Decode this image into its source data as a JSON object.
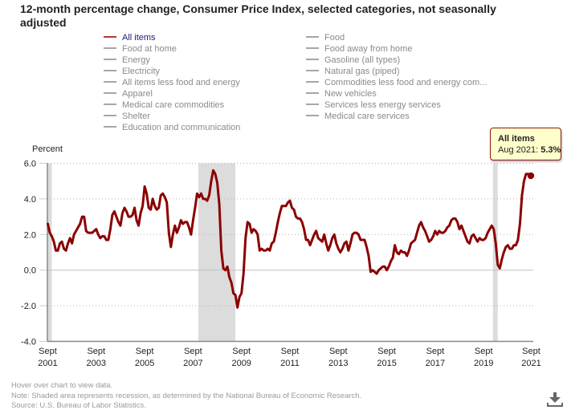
{
  "title": "12-month percentage change, Consumer Price Index, selected categories, not seasonally adjusted",
  "legend": {
    "left": [
      "All items",
      "Food at home",
      "Energy",
      "Electricity",
      "All items less food and energy",
      "Apparel",
      "Medical care commodities",
      "Shelter",
      "Education and communication"
    ],
    "right": [
      "Food",
      "Food away from home",
      "Gasoline (all types)",
      "Natural gas (piped)",
      "Commodities less food and energy com...",
      "New vehicles",
      "Services less energy services",
      "Medical care services"
    ],
    "active": "All items"
  },
  "tooltip": {
    "series": "All items",
    "label": "Aug 2021: ",
    "value": "5.3%"
  },
  "footer": {
    "hover": "Hover over chart to view data.",
    "note": "Note: Shaded area represents recession, as determined by the National Bureau of Economic Research.",
    "source": "Source: U.S. Bureau of Labor Statistics."
  },
  "colors": {
    "series": "#8b0000",
    "recession": "#dcdcdc",
    "grid": "#b0b0b0",
    "axis": "#888888"
  },
  "chart_data": {
    "type": "line",
    "title": "12-month percentage change, Consumer Price Index, selected categories, not seasonally adjusted",
    "xlabel": "",
    "ylabel": "Percent",
    "ylim": [
      -4.0,
      6.0
    ],
    "yticks": [
      "-4.0",
      "-2.0",
      "0.0",
      "2.0",
      "4.0",
      "6.0"
    ],
    "ytick_values": [
      -4,
      -2,
      0,
      2,
      4,
      6
    ],
    "x_start": "Sept 2001",
    "x_end": "Aug 2021",
    "xticks": [
      {
        "month_index": 0,
        "line1": "Sept",
        "line2": "2001"
      },
      {
        "month_index": 24,
        "line1": "Sept",
        "line2": "2003"
      },
      {
        "month_index": 48,
        "line1": "Sept",
        "line2": "2005"
      },
      {
        "month_index": 72,
        "line1": "Sept",
        "line2": "2007"
      },
      {
        "month_index": 96,
        "line1": "Sept",
        "line2": "2009"
      },
      {
        "month_index": 120,
        "line1": "Sept",
        "line2": "2011"
      },
      {
        "month_index": 144,
        "line1": "Sept",
        "line2": "2013"
      },
      {
        "month_index": 168,
        "line1": "Sept",
        "line2": "2015"
      },
      {
        "month_index": 192,
        "line1": "Sept",
        "line2": "2017"
      },
      {
        "month_index": 216,
        "line1": "Sept",
        "line2": "2019"
      },
      {
        "month_index": 240,
        "line1": "Sept",
        "line2": "2021"
      }
    ],
    "grid": true,
    "recessions": [
      {
        "from_index": 0,
        "to_index": 2,
        "label": "Sept 2001 - Nov 2001"
      },
      {
        "from_index": 75,
        "to_index": 93,
        "label": "Dec 2007 - Jun 2009"
      },
      {
        "from_index": 221,
        "to_index": 223,
        "label": "Feb 2020 - Apr 2020"
      }
    ],
    "series": [
      {
        "name": "All items",
        "values": [
          2.6,
          2.1,
          1.9,
          1.6,
          1.1,
          1.1,
          1.5,
          1.6,
          1.2,
          1.1,
          1.5,
          1.8,
          1.5,
          2.0,
          2.2,
          2.4,
          2.6,
          3.0,
          3.0,
          2.2,
          2.1,
          2.1,
          2.1,
          2.2,
          2.3,
          2.0,
          1.8,
          1.9,
          1.9,
          1.7,
          1.7,
          2.3,
          3.1,
          3.3,
          3.0,
          2.7,
          2.5,
          3.2,
          3.5,
          3.3,
          3.0,
          3.0,
          3.1,
          3.5,
          2.8,
          2.5,
          3.2,
          3.6,
          4.7,
          4.3,
          3.5,
          3.4,
          4.0,
          3.6,
          3.4,
          3.5,
          4.2,
          4.3,
          4.1,
          3.8,
          2.1,
          1.3,
          2.0,
          2.5,
          2.1,
          2.4,
          2.8,
          2.6,
          2.7,
          2.7,
          2.4,
          2.0,
          2.8,
          3.5,
          4.3,
          4.1,
          4.3,
          4.0,
          4.0,
          3.9,
          4.2,
          5.0,
          5.6,
          5.4,
          4.9,
          3.7,
          1.1,
          0.1,
          0.0,
          0.2,
          -0.4,
          -0.7,
          -1.3,
          -1.4,
          -2.1,
          -1.5,
          -1.3,
          -0.2,
          1.8,
          2.7,
          2.6,
          2.1,
          2.3,
          2.2,
          2.0,
          1.1,
          1.2,
          1.1,
          1.1,
          1.2,
          1.1,
          1.5,
          1.6,
          2.1,
          2.7,
          3.2,
          3.6,
          3.6,
          3.6,
          3.8,
          3.9,
          3.5,
          3.4,
          3.0,
          2.9,
          2.9,
          2.7,
          2.3,
          1.7,
          1.7,
          1.4,
          1.7,
          2.0,
          2.2,
          1.8,
          1.7,
          1.6,
          2.0,
          1.5,
          1.1,
          1.4,
          1.8,
          2.0,
          1.5,
          1.2,
          1.0,
          1.2,
          1.5,
          1.6,
          1.1,
          1.5,
          2.0,
          2.1,
          2.1,
          2.0,
          1.7,
          1.7,
          1.7,
          1.3,
          0.8,
          -0.1,
          0.0,
          -0.1,
          -0.2,
          0.0,
          0.1,
          0.2,
          0.2,
          0.0,
          0.2,
          0.5,
          0.7,
          1.4,
          1.0,
          0.9,
          1.1,
          1.0,
          1.0,
          0.8,
          1.1,
          1.5,
          1.6,
          1.7,
          2.1,
          2.5,
          2.7,
          2.4,
          2.2,
          1.9,
          1.6,
          1.7,
          1.9,
          2.2,
          2.0,
          2.2,
          2.1,
          2.1,
          2.2,
          2.4,
          2.5,
          2.8,
          2.9,
          2.9,
          2.7,
          2.3,
          2.5,
          2.2,
          1.9,
          1.6,
          1.5,
          1.9,
          2.0,
          1.8,
          1.6,
          1.8,
          1.7,
          1.7,
          1.8,
          2.1,
          2.3,
          2.5,
          2.3,
          1.5,
          0.3,
          0.1,
          0.6,
          1.0,
          1.3,
          1.4,
          1.2,
          1.2,
          1.4,
          1.4,
          1.7,
          2.6,
          4.2,
          5.0,
          5.4,
          5.4,
          5.3
        ]
      }
    ],
    "highlighted_point": {
      "label": "Aug 2021",
      "value": 5.3
    },
    "legend_placement": "top"
  }
}
